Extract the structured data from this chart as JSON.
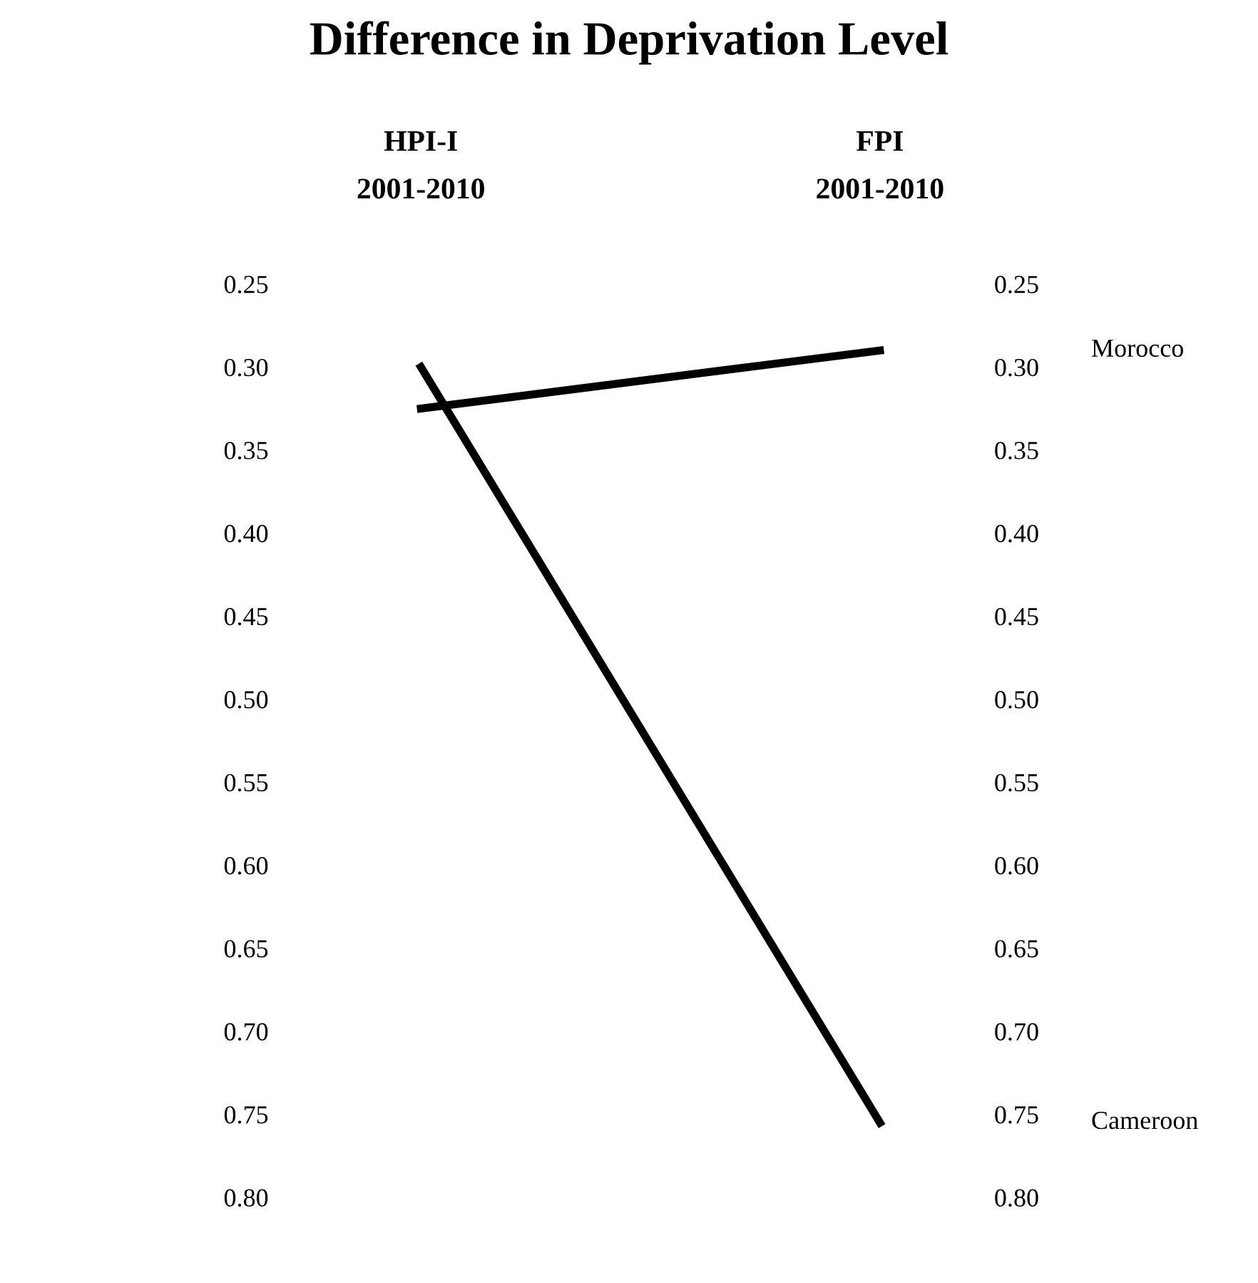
{
  "chart_data": {
    "type": "line",
    "title": "Difference in Deprivation Level",
    "categories": [
      "HPI-I\n2001-2010",
      "FPI\n2001-2010"
    ],
    "series": [
      {
        "name": "Morocco",
        "color": "#000000",
        "values": [
          0.325,
          0.29
        ]
      },
      {
        "name": "Cameroon",
        "color": "#000000",
        "values": [
          0.3,
          0.755
        ]
      }
    ],
    "ylim": [
      0.8,
      0.25
    ],
    "y2lim": [
      0.8,
      0.25
    ],
    "yticks": [
      {
        "value": 0.25,
        "label": "0.25"
      },
      {
        "value": 0.3,
        "label": "0.30"
      },
      {
        "value": 0.35,
        "label": "0.35"
      },
      {
        "value": 0.4,
        "label": "0.40"
      },
      {
        "value": 0.45,
        "label": "0.45"
      },
      {
        "value": 0.5,
        "label": "0.50"
      },
      {
        "value": 0.55,
        "label": "0.55"
      },
      {
        "value": 0.6,
        "label": "0.60"
      },
      {
        "value": 0.65,
        "label": "0.65"
      },
      {
        "value": 0.7,
        "label": "0.70"
      },
      {
        "value": 0.75,
        "label": "0.75"
      },
      {
        "value": 0.8,
        "label": "0.80"
      }
    ],
    "y2ticks": [
      {
        "value": 0.25,
        "label": "0.25"
      },
      {
        "value": 0.3,
        "label": "0.30"
      },
      {
        "value": 0.35,
        "label": "0.35"
      },
      {
        "value": 0.4,
        "label": "0.40"
      },
      {
        "value": 0.45,
        "label": "0.45"
      },
      {
        "value": 0.5,
        "label": "0.50"
      },
      {
        "value": 0.55,
        "label": "0.55"
      },
      {
        "value": 0.6,
        "label": "0.60"
      },
      {
        "value": 0.65,
        "label": "0.65"
      },
      {
        "value": 0.7,
        "label": "0.70"
      },
      {
        "value": 0.75,
        "label": "0.75"
      },
      {
        "value": 0.8,
        "label": "0.80"
      }
    ],
    "grid": false,
    "legend": false,
    "marker": "none",
    "line_style": "solid"
  }
}
